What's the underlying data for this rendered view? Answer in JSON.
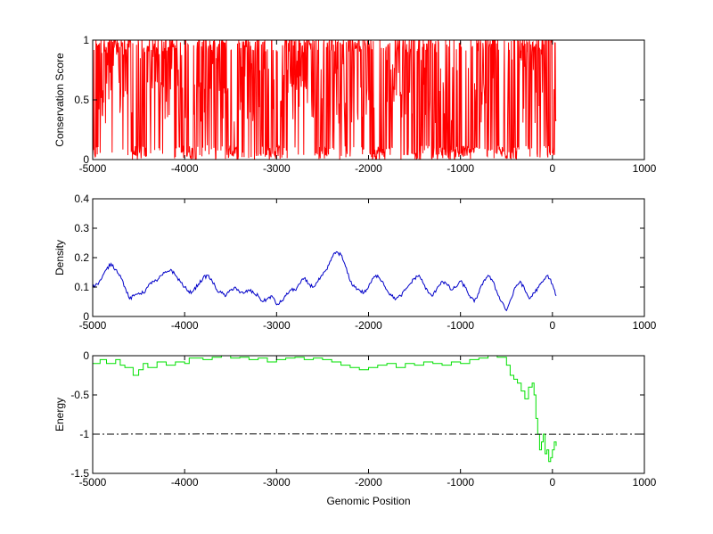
{
  "chart_data": [
    {
      "type": "line",
      "ylabel": "Conservation Score",
      "xlim": [
        -5000,
        1000
      ],
      "ylim": [
        0,
        1
      ],
      "xticks": [
        -5000,
        -4000,
        -3000,
        -2000,
        -1000,
        0,
        1000
      ],
      "xtick_labels": [
        "-5000",
        "-4000",
        "-3000",
        "-2000",
        "-1000",
        "0",
        "1000"
      ],
      "yticks": [
        0,
        0.5,
        1
      ],
      "ytick_labels": [
        "0",
        "0.5",
        "1"
      ],
      "grid": false,
      "series": [
        {
          "color": "#ff0000",
          "style": "spiky",
          "x_range": [
            -5000,
            40
          ],
          "density_profile": [
            [
              -5000,
              0.1
            ],
            [
              -4930,
              0.9
            ],
            [
              -4750,
              0.95
            ],
            [
              -4620,
              0.85
            ],
            [
              -4550,
              0.3
            ],
            [
              -4450,
              0.35
            ],
            [
              -4350,
              0.9
            ],
            [
              -4150,
              0.95
            ],
            [
              -4050,
              0.5
            ],
            [
              -3900,
              0.4
            ],
            [
              -3800,
              0.8
            ],
            [
              -3600,
              0.95
            ],
            [
              -3450,
              0.2
            ],
            [
              -3300,
              0.85
            ],
            [
              -3150,
              0.5
            ],
            [
              -3000,
              0.1
            ],
            [
              -2950,
              0.8
            ],
            [
              -2650,
              0.95
            ],
            [
              -2500,
              0.4
            ],
            [
              -2400,
              0.9
            ],
            [
              -2200,
              0.8
            ],
            [
              -2050,
              0.95
            ],
            [
              -1900,
              0.3
            ],
            [
              -1800,
              0.6
            ],
            [
              -1700,
              0.95
            ],
            [
              -1500,
              0.4
            ],
            [
              -1350,
              0.9
            ],
            [
              -1250,
              0.2
            ],
            [
              -1150,
              0.5
            ],
            [
              -950,
              0.1
            ],
            [
              -850,
              0.4
            ],
            [
              -750,
              0.85
            ],
            [
              -550,
              0.1
            ],
            [
              -350,
              0.6
            ],
            [
              -100,
              0.85
            ],
            [
              0,
              0.5
            ],
            [
              40,
              0.6
            ]
          ]
        }
      ]
    },
    {
      "type": "line",
      "ylabel": "Density",
      "xlim": [
        -5000,
        1000
      ],
      "ylim": [
        0,
        0.4
      ],
      "xticks": [
        -5000,
        -4000,
        -3000,
        -2000,
        -1000,
        0,
        1000
      ],
      "xtick_labels": [
        "-5000",
        "-4000",
        "-3000",
        "-2000",
        "-1000",
        "0",
        "1000"
      ],
      "yticks": [
        0,
        0.1,
        0.2,
        0.3,
        0.4
      ],
      "ytick_labels": [
        "0",
        "0.1",
        "0.2",
        "0.3",
        "0.4"
      ],
      "grid": false,
      "series": [
        {
          "color": "#0000c8",
          "x": [
            -5000,
            -4950,
            -4900,
            -4850,
            -4800,
            -4750,
            -4700,
            -4650,
            -4600,
            -4550,
            -4500,
            -4450,
            -4400,
            -4350,
            -4300,
            -4250,
            -4200,
            -4150,
            -4100,
            -4050,
            -4000,
            -3950,
            -3900,
            -3850,
            -3800,
            -3750,
            -3700,
            -3650,
            -3600,
            -3550,
            -3500,
            -3450,
            -3400,
            -3350,
            -3300,
            -3250,
            -3200,
            -3150,
            -3100,
            -3050,
            -3000,
            -2950,
            -2900,
            -2850,
            -2800,
            -2750,
            -2700,
            -2650,
            -2600,
            -2550,
            -2500,
            -2450,
            -2400,
            -2350,
            -2300,
            -2250,
            -2200,
            -2150,
            -2100,
            -2050,
            -2000,
            -1950,
            -1900,
            -1850,
            -1800,
            -1750,
            -1700,
            -1650,
            -1600,
            -1550,
            -1500,
            -1450,
            -1400,
            -1350,
            -1300,
            -1250,
            -1200,
            -1150,
            -1100,
            -1050,
            -1000,
            -950,
            -900,
            -850,
            -800,
            -750,
            -700,
            -650,
            -600,
            -550,
            -500,
            -450,
            -400,
            -350,
            -300,
            -250,
            -200,
            -150,
            -100,
            -50,
            0,
            40
          ],
          "values": [
            0.1,
            0.11,
            0.13,
            0.16,
            0.18,
            0.16,
            0.14,
            0.1,
            0.06,
            0.07,
            0.08,
            0.08,
            0.1,
            0.12,
            0.12,
            0.14,
            0.15,
            0.16,
            0.14,
            0.12,
            0.1,
            0.08,
            0.09,
            0.11,
            0.13,
            0.14,
            0.12,
            0.09,
            0.08,
            0.07,
            0.09,
            0.1,
            0.08,
            0.08,
            0.09,
            0.08,
            0.07,
            0.05,
            0.06,
            0.07,
            0.04,
            0.05,
            0.07,
            0.09,
            0.09,
            0.11,
            0.13,
            0.11,
            0.1,
            0.12,
            0.14,
            0.16,
            0.2,
            0.22,
            0.21,
            0.17,
            0.12,
            0.1,
            0.09,
            0.08,
            0.1,
            0.13,
            0.14,
            0.12,
            0.09,
            0.07,
            0.06,
            0.07,
            0.09,
            0.11,
            0.13,
            0.14,
            0.11,
            0.08,
            0.07,
            0.1,
            0.12,
            0.11,
            0.09,
            0.1,
            0.12,
            0.1,
            0.07,
            0.05,
            0.08,
            0.12,
            0.14,
            0.12,
            0.08,
            0.05,
            0.02,
            0.06,
            0.1,
            0.12,
            0.09,
            0.06,
            0.08,
            0.1,
            0.12,
            0.14,
            0.11,
            0.07
          ]
        }
      ]
    },
    {
      "type": "line",
      "ylabel": "Energy",
      "xlabel": "Genomic Position",
      "xlim": [
        -5000,
        1000
      ],
      "ylim": [
        -1.5,
        0
      ],
      "xticks": [
        -5000,
        -4000,
        -3000,
        -2000,
        -1000,
        0,
        1000
      ],
      "xtick_labels": [
        "-5000",
        "-4000",
        "-3000",
        "-2000",
        "-1000",
        "0",
        "1000"
      ],
      "yticks": [
        -1.5,
        -1,
        -0.5,
        0
      ],
      "ytick_labels": [
        "-1.5",
        "-1",
        "-0.5",
        "0"
      ],
      "grid": false,
      "series": [
        {
          "color": "#00e000",
          "style": "step",
          "x": [
            -5000,
            -4920,
            -4850,
            -4750,
            -4700,
            -4650,
            -4560,
            -4500,
            -4450,
            -4400,
            -4300,
            -4200,
            -4100,
            -4000,
            -3950,
            -3800,
            -3700,
            -3600,
            -3500,
            -3400,
            -3300,
            -3200,
            -3100,
            -3000,
            -2900,
            -2800,
            -2700,
            -2600,
            -2500,
            -2400,
            -2300,
            -2200,
            -2100,
            -2000,
            -1900,
            -1800,
            -1700,
            -1600,
            -1500,
            -1400,
            -1300,
            -1200,
            -1100,
            -1000,
            -900,
            -800,
            -700,
            -600,
            -500,
            -460,
            -420,
            -380,
            -340,
            -300,
            -260,
            -220,
            -200,
            -180,
            -160,
            -140,
            -120,
            -100,
            -80,
            -60,
            -40,
            -20,
            0,
            20,
            40
          ],
          "values": [
            -0.1,
            -0.05,
            -0.1,
            -0.05,
            -0.12,
            -0.15,
            -0.25,
            -0.18,
            -0.1,
            -0.15,
            -0.08,
            -0.12,
            -0.08,
            -0.1,
            -0.03,
            -0.05,
            -0.02,
            0.0,
            -0.03,
            -0.02,
            -0.05,
            -0.03,
            -0.08,
            -0.05,
            -0.03,
            -0.02,
            -0.05,
            -0.03,
            -0.05,
            -0.08,
            -0.12,
            -0.15,
            -0.18,
            -0.15,
            -0.12,
            -0.1,
            -0.15,
            -0.1,
            -0.12,
            -0.08,
            -0.1,
            -0.12,
            -0.08,
            -0.1,
            -0.05,
            -0.03,
            0.0,
            -0.02,
            -0.12,
            -0.25,
            -0.3,
            -0.35,
            -0.45,
            -0.55,
            -0.4,
            -0.35,
            -0.5,
            -0.8,
            -1.0,
            -1.2,
            -1.1,
            -1.0,
            -1.25,
            -1.2,
            -1.35,
            -1.3,
            -1.2,
            -1.1,
            -1.15
          ]
        },
        {
          "color": "#000000",
          "style": "dash-dot",
          "x": [
            -5000,
            1000
          ],
          "values": [
            -1,
            -1
          ]
        }
      ]
    }
  ]
}
